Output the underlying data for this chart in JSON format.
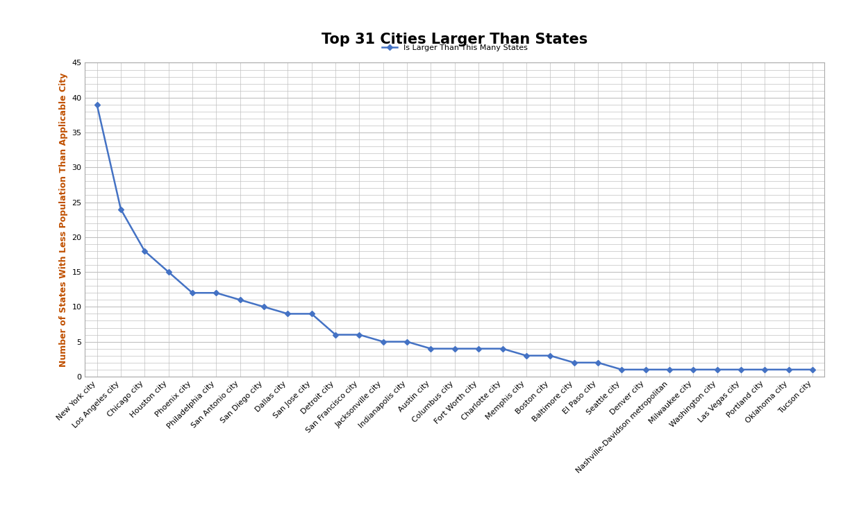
{
  "title": "Top 31 Cities Larger Than States",
  "ylabel": "Number of States With Less Population Than Applicable City",
  "legend_label": "Is Larger Than This Many States",
  "cities": [
    "New York city",
    "Los Angeles city",
    "Chicago city",
    "Houston city",
    "Phoenix city",
    "Philadelphia city",
    "San Antonio city",
    "San Diego city",
    "Dallas city",
    "San Jose city",
    "Detroit city",
    "San Francisco city",
    "Jacksonville city",
    "Indianapolis city",
    "Austin city",
    "Columbus city",
    "Fort Worth city",
    "Charlotte city",
    "Memphis city",
    "Boston city",
    "Baltimore city",
    "El Paso city",
    "Seattle city",
    "Denver city",
    "Nashville-Davidson metropolitan",
    "Milwaukee city",
    "Washington city",
    "Las Vegas city",
    "Portland city",
    "Oklahoma city",
    "Tucson city"
  ],
  "values": [
    39,
    24,
    18,
    15,
    12,
    12,
    11,
    10,
    9,
    9,
    6,
    6,
    5,
    5,
    4,
    4,
    4,
    4,
    3,
    3,
    2,
    2,
    1,
    1,
    1,
    1,
    1,
    1,
    1,
    1,
    1
  ],
  "line_color": "#4472C4",
  "marker": "D",
  "marker_size": 4,
  "background_color": "#FFFFFF",
  "plot_bg_color": "#FFFFFF",
  "grid_color": "#C0C0C0",
  "ylim": [
    0,
    45
  ],
  "yticks": [
    0,
    5,
    10,
    15,
    20,
    25,
    30,
    35,
    40,
    45
  ],
  "title_fontsize": 15,
  "ylabel_fontsize": 9,
  "ylabel_color": "#C05000",
  "tick_fontsize": 8,
  "legend_fontsize": 8,
  "linewidth": 1.8
}
